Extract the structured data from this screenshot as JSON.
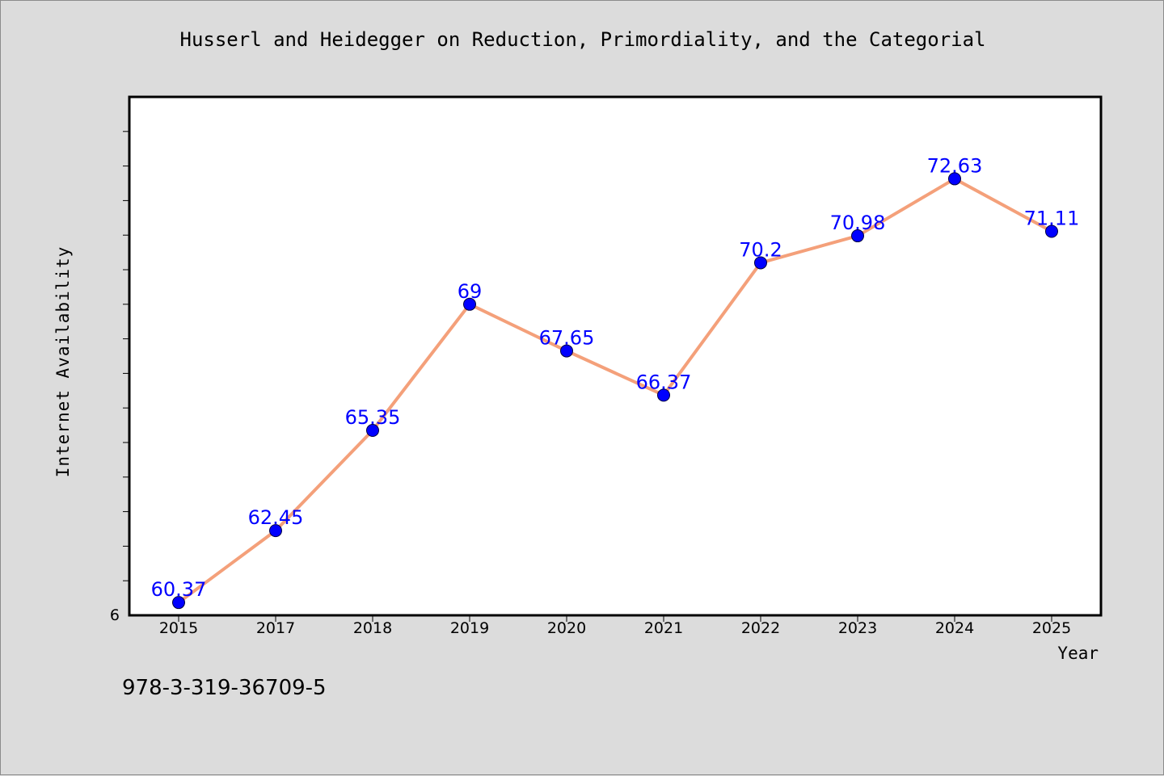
{
  "chart_data": {
    "type": "line",
    "title": "Husserl and Heidegger on Reduction, Primordiality, and the Categorial",
    "xlabel": "Year",
    "ylabel": "Internet Availability",
    "categories": [
      "2015",
      "2017",
      "2018",
      "2019",
      "2020",
      "2021",
      "2022",
      "2023",
      "2024",
      "2025"
    ],
    "series": [
      {
        "values": [
          60.37,
          62.45,
          65.35,
          69,
          67.65,
          66.37,
          70.2,
          70.98,
          72.63,
          71.11
        ],
        "labels": [
          "60.37",
          "62.45",
          "65.35",
          "69",
          "67.65",
          "66.37",
          "70.2",
          "70.98",
          "72.63",
          "71.11"
        ]
      }
    ],
    "y_tick_labels": [
      "6"
    ],
    "ylim": [
      60,
      75
    ],
    "grid": false,
    "legend": "none",
    "colors": {
      "line": "#f4a07a",
      "marker": "#0000ff",
      "data_label": "#0000ff",
      "plot_bg": "#ffffff",
      "figure_bg": "#dcdcdc"
    }
  },
  "footer": {
    "id_text": "978-3-319-36709-5"
  }
}
